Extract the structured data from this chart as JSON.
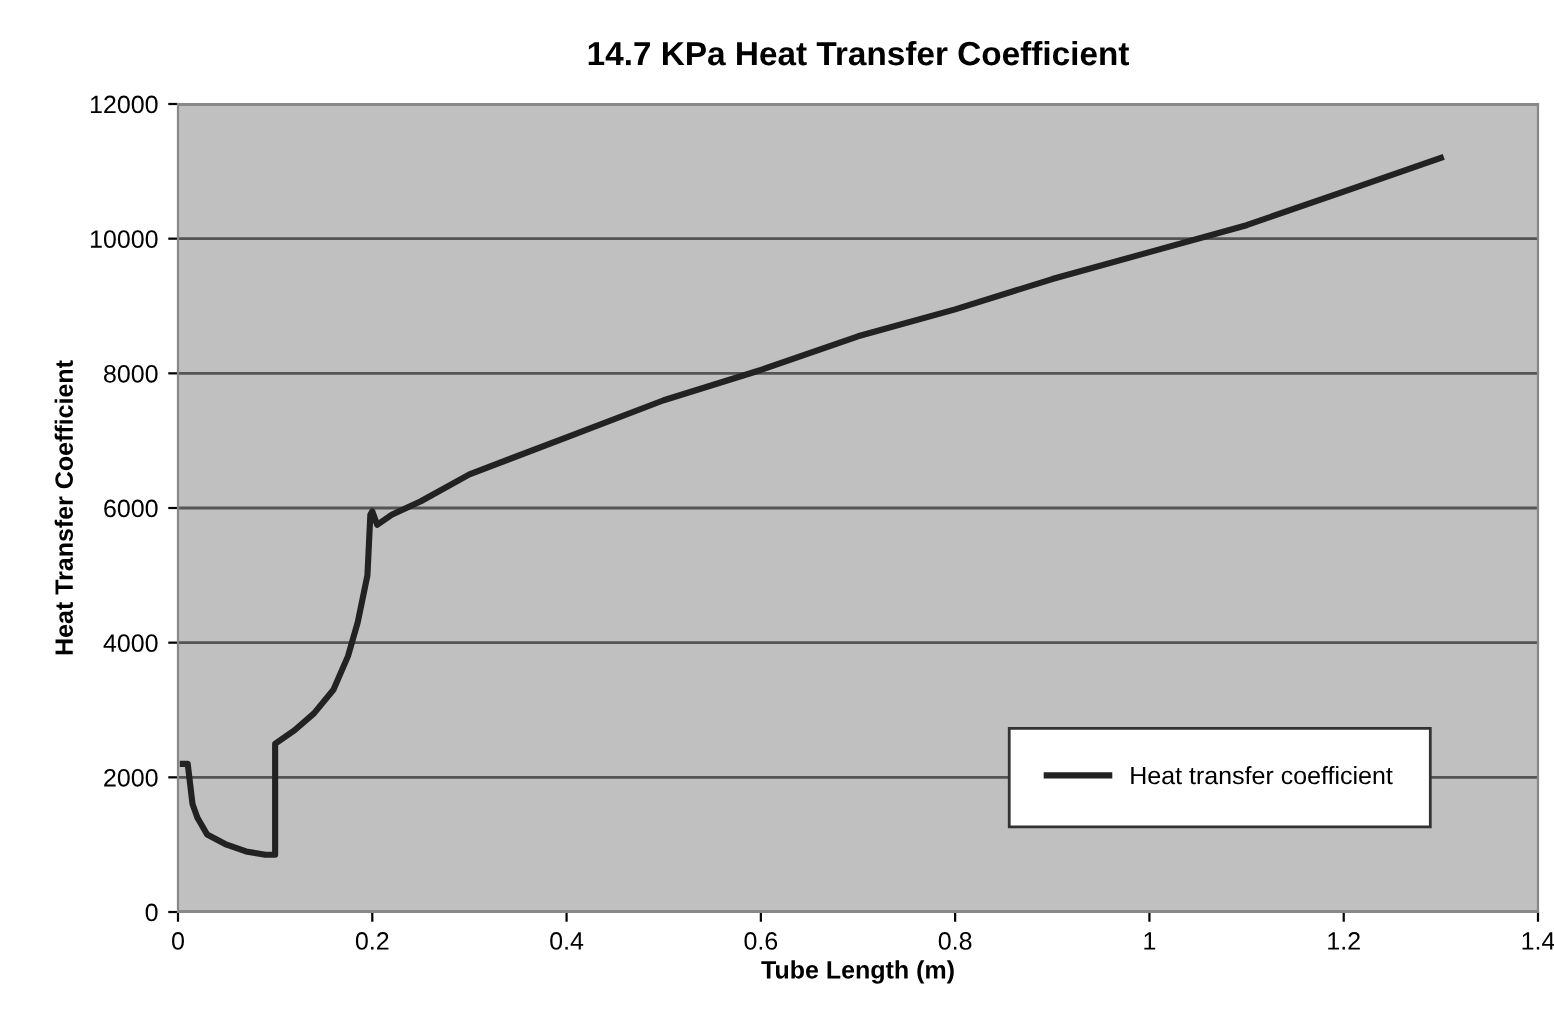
{
  "chart_data": {
    "type": "line",
    "title": "14.7 KPa Heat Transfer Coefficient",
    "xlabel": "Tube Length (m)",
    "ylabel": "Heat Transfer Coefficient",
    "x": [
      0.005,
      0.01,
      0.015,
      0.02,
      0.03,
      0.05,
      0.07,
      0.09,
      0.1,
      0.1,
      0.12,
      0.14,
      0.16,
      0.175,
      0.185,
      0.195,
      0.198,
      0.2,
      0.205,
      0.21,
      0.22,
      0.25,
      0.3,
      0.4,
      0.5,
      0.6,
      0.7,
      0.8,
      0.9,
      1.0,
      1.1,
      1.2,
      1.3
    ],
    "series": [
      {
        "name": "Heat transfer coefficient",
        "color": "#222222",
        "values": [
          2200,
          2200,
          1600,
          1400,
          1150,
          1000,
          900,
          850,
          850,
          2500,
          2700,
          2950,
          3300,
          3800,
          4300,
          5000,
          5900,
          5950,
          5750,
          5800,
          5900,
          6100,
          6500,
          7050,
          7600,
          8050,
          8550,
          8950,
          9400,
          9800,
          10200,
          10700,
          11200
        ]
      }
    ],
    "xlim": [
      0,
      1.4
    ],
    "xticks": [
      0,
      0.2,
      0.4,
      0.6,
      0.8,
      1,
      1.2,
      1.4
    ],
    "ylim": [
      0,
      12000
    ],
    "yticks": [
      0,
      2000,
      4000,
      6000,
      8000,
      10000,
      12000
    ],
    "grid": "y",
    "legend": "lower right",
    "marker": "none",
    "line_style": "solid"
  }
}
